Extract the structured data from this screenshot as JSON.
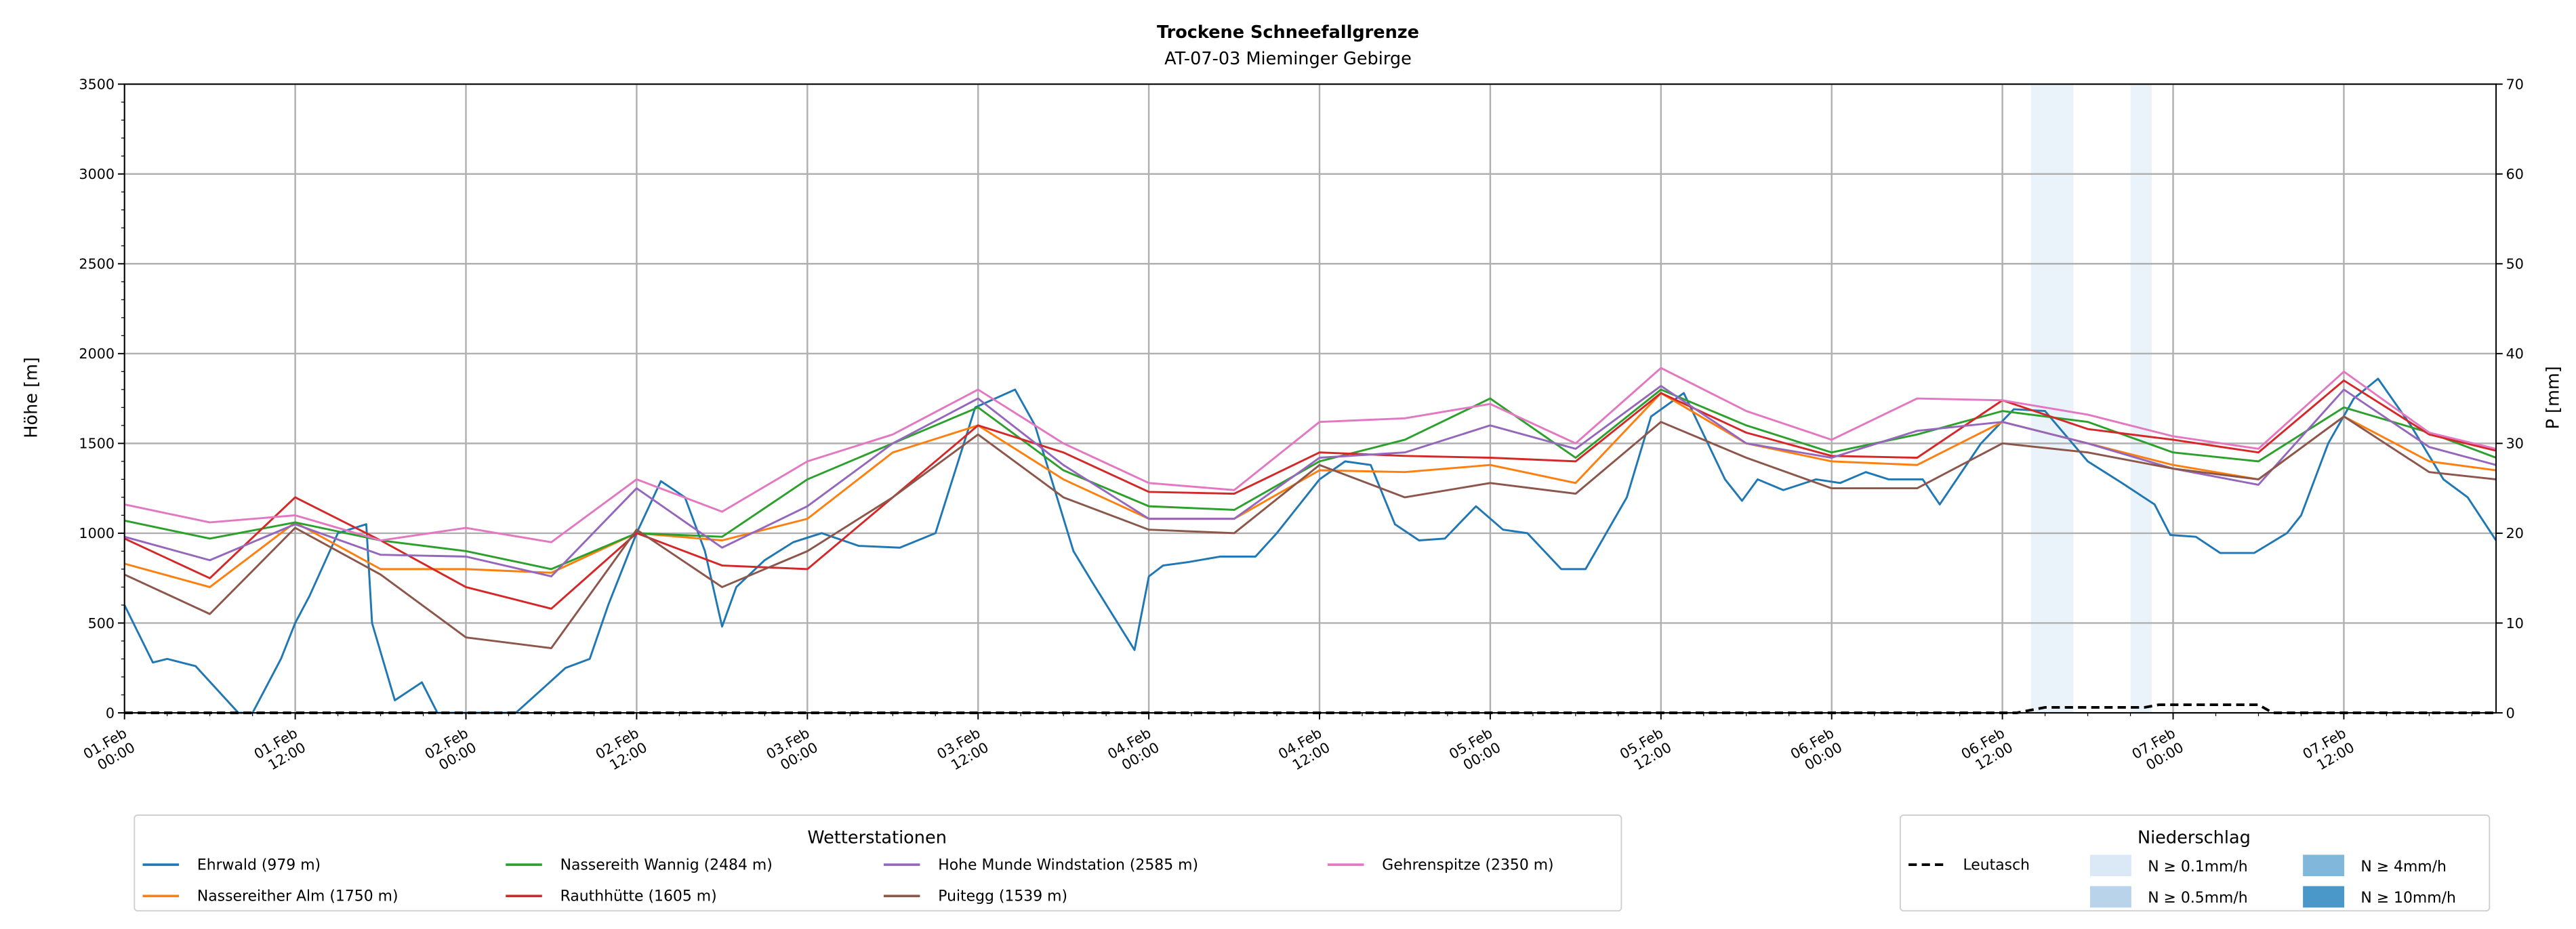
{
  "chart_data": {
    "type": "line",
    "title": "Trockene Schneefallgrenze",
    "subtitle": "AT-07-03 Mieminger Gebirge",
    "ylabel": "Höhe [m]",
    "ylabel_right": "P [mm]",
    "ylim": [
      0,
      3500
    ],
    "ylim_right": [
      0,
      70
    ],
    "yticks": [
      0,
      500,
      1000,
      1500,
      2000,
      2500,
      3000,
      3500
    ],
    "yticks_right": [
      0,
      10,
      20,
      30,
      40,
      50,
      60,
      70
    ],
    "x_unit": "hours since 01.Feb 00:00",
    "xlim": [
      0,
      166.7
    ],
    "xticks": [
      {
        "h": 0,
        "l1": "01.Feb",
        "l2": "00:00"
      },
      {
        "h": 12,
        "l1": "01.Feb",
        "l2": "12:00"
      },
      {
        "h": 24,
        "l1": "02.Feb",
        "l2": "00:00"
      },
      {
        "h": 36,
        "l1": "02.Feb",
        "l2": "12:00"
      },
      {
        "h": 48,
        "l1": "03.Feb",
        "l2": "00:00"
      },
      {
        "h": 60,
        "l1": "03.Feb",
        "l2": "12:00"
      },
      {
        "h": 72,
        "l1": "04.Feb",
        "l2": "00:00"
      },
      {
        "h": 84,
        "l1": "04.Feb",
        "l2": "12:00"
      },
      {
        "h": 96,
        "l1": "05.Feb",
        "l2": "00:00"
      },
      {
        "h": 108,
        "l1": "05.Feb",
        "l2": "12:00"
      },
      {
        "h": 120,
        "l1": "06.Feb",
        "l2": "00:00"
      },
      {
        "h": 132,
        "l1": "06.Feb",
        "l2": "12:00"
      },
      {
        "h": 144,
        "l1": "07.Feb",
        "l2": "00:00"
      },
      {
        "h": 156,
        "l1": "07.Feb",
        "l2": "12:00"
      }
    ],
    "grid": true,
    "series": [
      {
        "name": "Ehrwald (979 m)",
        "color": "#1f77b4",
        "x": [
          0,
          2,
          3,
          5,
          8,
          9,
          11,
          12,
          13,
          15,
          17,
          17.4,
          19,
          20.9,
          22,
          27.5,
          29.6,
          31,
          32.7,
          34,
          36,
          37.7,
          39.4,
          40.8,
          42,
          43,
          45,
          47,
          49,
          51.6,
          54.5,
          57,
          58,
          59.8,
          62.6,
          64,
          66.7,
          68,
          71,
          72,
          73,
          74.8,
          77,
          79.5,
          81,
          84,
          85.8,
          87.6,
          89.3,
          91,
          92.8,
          95,
          96.9,
          98.6,
          101,
          102.7,
          105.6,
          107.3,
          109.6,
          112.5,
          113.7,
          114.8,
          116.6,
          118.9,
          120.6,
          122.4,
          124,
          126.4,
          127.6,
          130.5,
          132.8,
          135,
          138,
          140.4,
          142.7,
          143.8,
          145.6,
          147.3,
          149.7,
          152,
          153,
          154.9,
          156.7,
          158.4,
          160.7,
          163,
          164.7,
          166.7
        ],
        "y": [
          600,
          280,
          300,
          260,
          0,
          0,
          300,
          500,
          650,
          1000,
          1050,
          500,
          70,
          170,
          0,
          0,
          150,
          250,
          300,
          600,
          1000,
          1290,
          1200,
          900,
          480,
          700,
          850,
          950,
          1000,
          930,
          920,
          1000,
          1250,
          1700,
          1800,
          1600,
          900,
          730,
          350,
          760,
          820,
          840,
          870,
          870,
          1000,
          1300,
          1400,
          1380,
          1050,
          960,
          970,
          1150,
          1020,
          1000,
          800,
          800,
          1200,
          1650,
          1780,
          1300,
          1180,
          1300,
          1240,
          1300,
          1280,
          1340,
          1300,
          1300,
          1160,
          1500,
          1690,
          1680,
          1400,
          1280,
          1160,
          990,
          980,
          890,
          890,
          1000,
          1100,
          1500,
          1750,
          1860,
          1600,
          1300,
          1200,
          960
        ]
      },
      {
        "name": "Nassereither Alm (1750 m)",
        "color": "#ff7f0e",
        "x": [
          0,
          6,
          12,
          18,
          24,
          30,
          36,
          42,
          48,
          54,
          60,
          66,
          72,
          78,
          84,
          90,
          96,
          102,
          108,
          114,
          120,
          126,
          132,
          138,
          144,
          150,
          156,
          162,
          166.7
        ],
        "y": [
          830,
          700,
          1060,
          800,
          800,
          780,
          1000,
          960,
          1080,
          1450,
          1600,
          1300,
          1080,
          1080,
          1350,
          1340,
          1380,
          1280,
          1780,
          1500,
          1400,
          1380,
          1620,
          1500,
          1380,
          1300,
          1650,
          1400,
          1350
        ]
      },
      {
        "name": "Nassereith Wannig (2484 m)",
        "color": "#2ca02c",
        "x": [
          0,
          6,
          12,
          18,
          24,
          30,
          36,
          42,
          48,
          54,
          60,
          66,
          72,
          78,
          84,
          90,
          96,
          102,
          108,
          114,
          120,
          126,
          132,
          138,
          144,
          150,
          156,
          162,
          166.7
        ],
        "y": [
          1070,
          970,
          1060,
          960,
          900,
          800,
          1000,
          980,
          1300,
          1500,
          1700,
          1350,
          1150,
          1130,
          1400,
          1520,
          1750,
          1420,
          1800,
          1600,
          1450,
          1550,
          1680,
          1620,
          1450,
          1400,
          1700,
          1560,
          1420
        ]
      },
      {
        "name": "Rauthhütte (1605 m)",
        "color": "#d62728",
        "x": [
          0,
          6,
          12,
          18,
          24,
          30,
          36,
          42,
          48,
          54,
          60,
          66,
          72,
          78,
          84,
          90,
          96,
          102,
          108,
          114,
          120,
          126,
          132,
          138,
          144,
          150,
          156,
          162,
          166.7
        ],
        "y": [
          970,
          750,
          1200,
          960,
          700,
          580,
          1000,
          820,
          800,
          1200,
          1600,
          1450,
          1230,
          1220,
          1450,
          1430,
          1420,
          1400,
          1780,
          1560,
          1430,
          1420,
          1740,
          1580,
          1520,
          1450,
          1850,
          1550,
          1460
        ]
      },
      {
        "name": "Hohe Munde Windstation (2585 m)",
        "color": "#9467bd",
        "x": [
          0,
          6,
          12,
          18,
          24,
          30,
          36,
          42,
          48,
          54,
          60,
          66,
          72,
          78,
          84,
          90,
          96,
          102,
          108,
          114,
          120,
          126,
          132,
          138,
          144,
          150,
          156,
          162,
          166.7
        ],
        "y": [
          980,
          850,
          1050,
          880,
          870,
          760,
          1250,
          920,
          1150,
          1500,
          1750,
          1380,
          1080,
          1080,
          1420,
          1450,
          1600,
          1470,
          1820,
          1500,
          1420,
          1570,
          1620,
          1500,
          1360,
          1270,
          1800,
          1480,
          1380
        ]
      },
      {
        "name": "Puitegg (1539 m)",
        "color": "#8c564b",
        "x": [
          0,
          6,
          12,
          18,
          24,
          30,
          36,
          42,
          48,
          54,
          60,
          66,
          72,
          78,
          84,
          90,
          96,
          102,
          108,
          114,
          120,
          126,
          132,
          138,
          144,
          150,
          156,
          162,
          166.7
        ],
        "y": [
          770,
          550,
          1030,
          770,
          420,
          360,
          1020,
          700,
          900,
          1200,
          1550,
          1200,
          1020,
          1000,
          1380,
          1200,
          1280,
          1220,
          1620,
          1420,
          1250,
          1250,
          1500,
          1450,
          1360,
          1300,
          1650,
          1340,
          1300
        ]
      },
      {
        "name": "Gehrenspitze (2350 m)",
        "color": "#e377c2",
        "x": [
          0,
          6,
          12,
          18,
          24,
          30,
          36,
          42,
          48,
          54,
          60,
          66,
          72,
          78,
          84,
          90,
          96,
          102,
          108,
          114,
          120,
          126,
          132,
          138,
          144,
          150,
          156,
          162,
          166.7
        ],
        "y": [
          1160,
          1060,
          1100,
          960,
          1030,
          950,
          1300,
          1120,
          1400,
          1550,
          1800,
          1500,
          1280,
          1240,
          1620,
          1640,
          1720,
          1500,
          1920,
          1680,
          1520,
          1750,
          1740,
          1660,
          1540,
          1470,
          1900,
          1560,
          1470
        ]
      }
    ],
    "precip": {
      "name": "Leutasch",
      "color": "#000000",
      "axis": "right",
      "x": [
        0,
        133,
        135,
        136,
        142,
        143,
        150,
        151,
        166.7
      ],
      "y": [
        0,
        0,
        0.6,
        0.6,
        0.6,
        0.9,
        0.9,
        0,
        0
      ]
    },
    "precip_bands": [
      {
        "start": 134,
        "end": 137,
        "class": "N ≥ 0.1mm/h"
      },
      {
        "start": 141,
        "end": 142.5,
        "class": "N ≥ 0.1mm/h"
      }
    ],
    "legend_stations": {
      "title": "Wetterstationen",
      "placement": "bottom-left"
    },
    "legend_precip": {
      "title": "Niederschlag",
      "placement": "bottom-right",
      "line_label": "Leutasch",
      "classes": [
        {
          "label": "N ≥ 0.1mm/h",
          "color": "#dbe9f6"
        },
        {
          "label": "N ≥ 0.5mm/h",
          "color": "#b9d4ea"
        },
        {
          "label": "N ≥ 4mm/h",
          "color": "#80b7da"
        },
        {
          "label": "N ≥ 10mm/h",
          "color": "#4a98c9"
        }
      ]
    }
  }
}
